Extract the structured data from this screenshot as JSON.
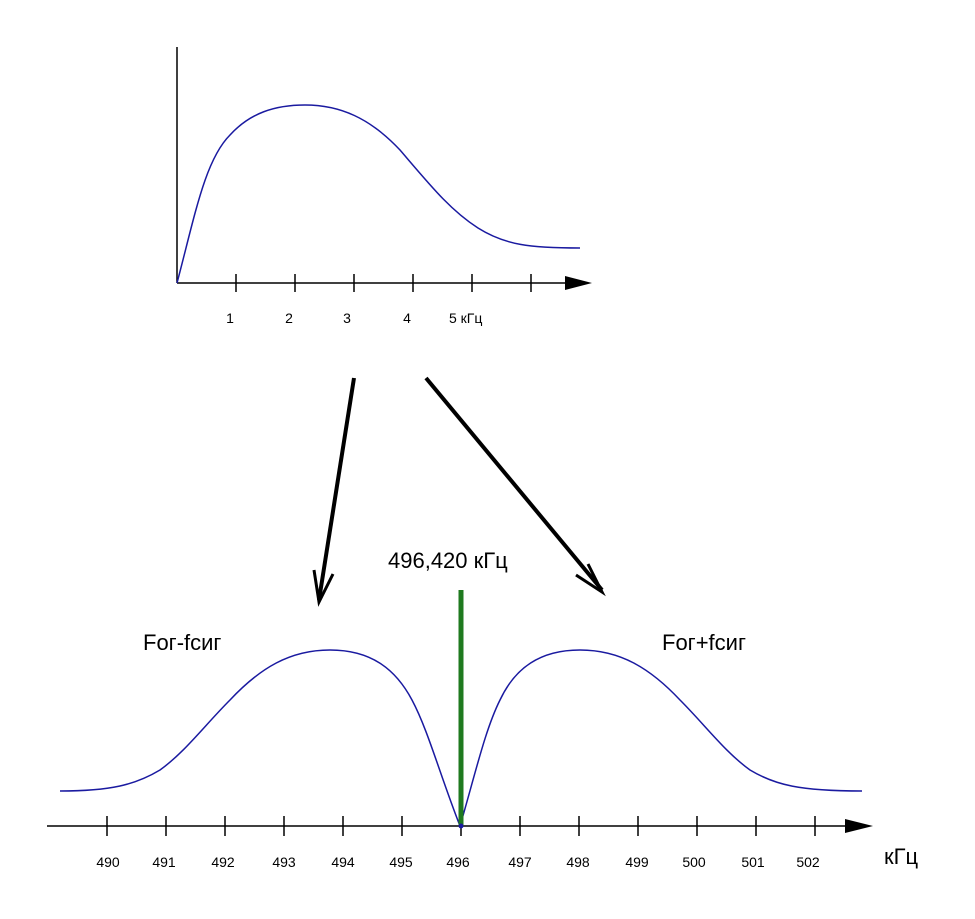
{
  "colors": {
    "axis": "#000000",
    "spectrum_curve": "#1a1aa0",
    "carrier_line": "#1f7a1f",
    "arrows": "#000000"
  },
  "top_spectrum": {
    "x_tick_labels": [
      "1",
      "2",
      "3",
      "4",
      "5 кГц"
    ]
  },
  "bottom_spectrum": {
    "x_tick_labels": [
      "490",
      "491",
      "492",
      "493",
      "494",
      "495",
      "496",
      "497",
      "498",
      "499",
      "500",
      "501",
      "502"
    ],
    "x_unit": "кГц",
    "carrier_label": "496,420 кГц",
    "lower_sideband_label": "Fог-fсиг",
    "upper_sideband_label": "Fог+fсиг"
  }
}
